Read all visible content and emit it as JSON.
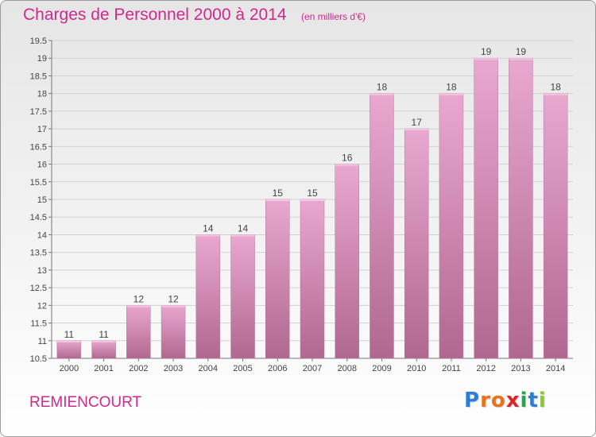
{
  "header": {
    "title": "Charges de Personnel 2000 à 2014",
    "subtitle": "(en milliers d'€)"
  },
  "footer": {
    "place": "REMIENCOURT",
    "brand": "Proxiti",
    "brand_letters": [
      {
        "char": "P",
        "color": "#2a7fd4"
      },
      {
        "char": "r",
        "color": "#e8731a"
      },
      {
        "char": "o",
        "color": "#e8731a"
      },
      {
        "char": "x",
        "color": "#d8262a"
      },
      {
        "char": "i",
        "color": "#2aa34a"
      },
      {
        "char": "t",
        "color": "#2a7fd4"
      },
      {
        "char": "i",
        "color": "#8cc63f"
      }
    ]
  },
  "colors": {
    "accent": "#d0288c",
    "bar_top": "#e9a8d0",
    "bar_bottom": "#b06890"
  },
  "chart_data": {
    "type": "bar",
    "title": "Charges de Personnel 2000 à 2014",
    "subtitle": "(en milliers d'€)",
    "xlabel": "",
    "ylabel": "",
    "categories": [
      "2000",
      "2001",
      "2002",
      "2003",
      "2004",
      "2005",
      "2006",
      "2007",
      "2008",
      "2009",
      "2010",
      "2011",
      "2012",
      "2013",
      "2014"
    ],
    "values": [
      11,
      11,
      12,
      12,
      14,
      14,
      15,
      15,
      16,
      18,
      17,
      18,
      19,
      19,
      18
    ],
    "labels": [
      "11",
      "11",
      "12",
      "12",
      "14",
      "14",
      "15",
      "15",
      "16",
      "18",
      "17",
      "18",
      "19",
      "19",
      "18"
    ],
    "ylim": [
      10.5,
      19.5
    ],
    "yticks": [
      10.5,
      11,
      11.5,
      12,
      12.5,
      13,
      13.5,
      14,
      14.5,
      15,
      15.5,
      16,
      16.5,
      17,
      17.5,
      18,
      18.5,
      19,
      19.5
    ],
    "ytick_labels": [
      "10.5",
      "11",
      "11.5",
      "12",
      "12.5",
      "13",
      "13.5",
      "14",
      "14.5",
      "15",
      "15.5",
      "16",
      "16.5",
      "17",
      "17.5",
      "18",
      "18.5",
      "19",
      "19.5"
    ],
    "grid": "horizontal",
    "legend": "none"
  }
}
